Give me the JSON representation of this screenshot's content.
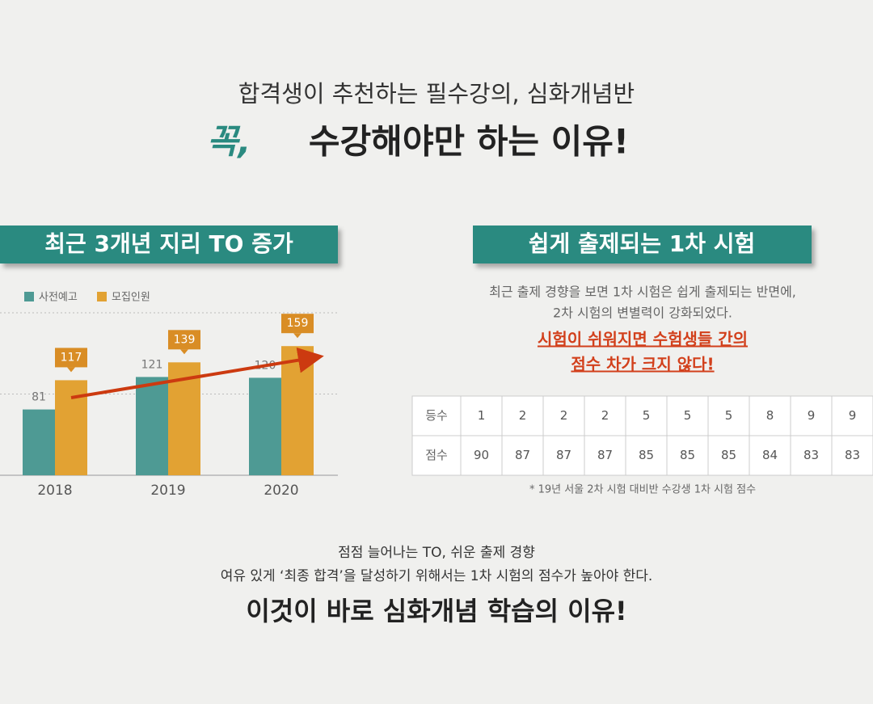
{
  "header": {
    "subtitle": "합격생이 추천하는 필수강의, 심화개념반",
    "title_emphasis": "꼭,",
    "title": "수강해야만 하는 이유!"
  },
  "left": {
    "banner": "최근 3개년 지리 TO 증가",
    "chart": {
      "type": "bar",
      "categories": [
        "2018",
        "2019",
        "2020"
      ],
      "series": [
        {
          "name": "사전예고",
          "color": "#4e9a94",
          "values": [
            81,
            121,
            120
          ]
        },
        {
          "name": "모집인원",
          "color": "#e2a233",
          "values": [
            117,
            139,
            159
          ]
        }
      ],
      "ylim": [
        0,
        200
      ],
      "grid": true
    }
  },
  "right": {
    "banner": "쉽게 출제되는 1차 시험",
    "text": [
      "최근 출제 경향을 보면 1차 시험은 쉽게 출제되는 반면에,",
      "2차 시험의 변별력이 강화되었다."
    ],
    "highlight": [
      "시험이 쉬워지면 수험생들 간의",
      "점수 차가 크지 않다!"
    ],
    "table": {
      "rows": [
        [
          "등수",
          1,
          2,
          2,
          2,
          5,
          5,
          5,
          8,
          9,
          9
        ],
        [
          "점수",
          90,
          87,
          87,
          87,
          85,
          85,
          85,
          84,
          83,
          83
        ]
      ]
    },
    "note": "* 19년 서울 2차 시험 대비반 수강생 1차 시험 점수"
  },
  "footer": {
    "lines": [
      "점점 늘어나는 TO, 쉬운 출제 경향",
      "여유 있게 ‘최종 합격’을 달성하기 위해서는 1차 시험의 점수가 높아야 한다."
    ],
    "conclusion": "이것이 바로 심화개념 학습의 이유!"
  }
}
